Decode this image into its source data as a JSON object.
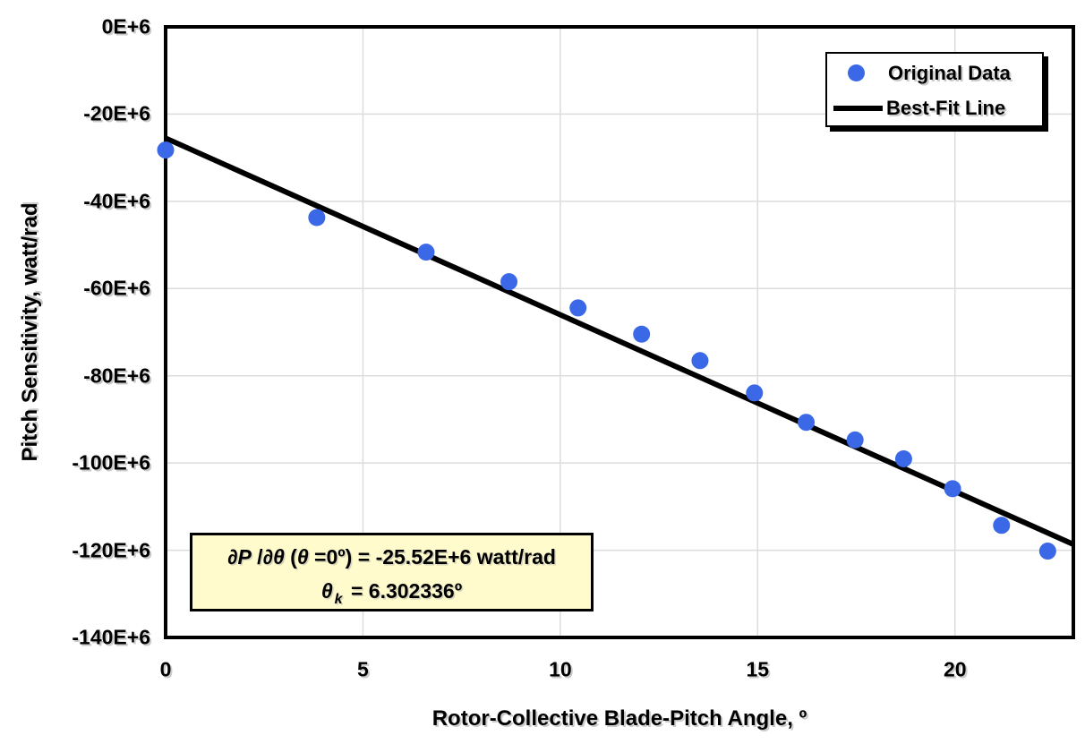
{
  "chart_data": {
    "type": "scatter",
    "title": "",
    "xlabel": "Rotor-Collective Blade-Pitch Angle, º",
    "ylabel": "Pitch Sensitivity, watt/rad",
    "xlim": [
      0,
      23
    ],
    "ylim_E6": [
      -140,
      0
    ],
    "x_ticks": [
      0,
      5,
      10,
      15,
      20
    ],
    "y_ticks": [
      {
        "v": 0,
        "label": "0E+6"
      },
      {
        "v": -20,
        "label": "-20E+6"
      },
      {
        "v": -40,
        "label": "-40E+6"
      },
      {
        "v": -60,
        "label": "-60E+6"
      },
      {
        "v": -80,
        "label": "-80E+6"
      },
      {
        "v": -100,
        "label": "-100E+6"
      },
      {
        "v": -120,
        "label": "-120E+6"
      },
      {
        "v": -140,
        "label": "-140E+6"
      }
    ],
    "grid": true,
    "gridline_color": "#dcdcdc",
    "legend_position": "top-right",
    "series": [
      {
        "name": "Original Data",
        "type": "scatter",
        "color": "#3B68E6",
        "x_units": "degrees",
        "y_units": "E+6 watt/rad",
        "points": [
          [
            0.0,
            -28.24
          ],
          [
            3.83,
            -43.73
          ],
          [
            6.6,
            -51.66
          ],
          [
            8.7,
            -58.44
          ],
          [
            10.45,
            -64.44
          ],
          [
            12.06,
            -70.46
          ],
          [
            13.54,
            -76.53
          ],
          [
            14.92,
            -83.94
          ],
          [
            16.23,
            -90.67
          ],
          [
            17.47,
            -94.71
          ],
          [
            18.7,
            -99.04
          ],
          [
            19.94,
            -105.9
          ],
          [
            21.18,
            -114.3
          ],
          [
            22.35,
            -120.2
          ]
        ]
      },
      {
        "name": "Best-Fit Line",
        "type": "line",
        "color": "#000000",
        "intercept_E6": -25.52,
        "theta_k_deg": 6.302336,
        "x_range": [
          0,
          23
        ]
      }
    ]
  },
  "legend": {
    "items": [
      {
        "label": "Original Data",
        "marker": "dot",
        "color": "#3B68E6"
      },
      {
        "label": "Best-Fit Line",
        "marker": "line",
        "color": "#000000"
      }
    ]
  },
  "annotation": {
    "bg_color": "#FFFBCC",
    "l1_p1": "∂P",
    "l1_p2": " /",
    "l1_p3": "∂θ",
    "l1_p4": " (",
    "l1_p5": "θ",
    "l1_p6": " =0º) = ",
    "l1_p7": "-25.52E+6 watt/rad",
    "l2_p1": "θ",
    "l2_p2": "k",
    "l2_p3": " = ",
    "l2_p4": "6.302336º"
  }
}
